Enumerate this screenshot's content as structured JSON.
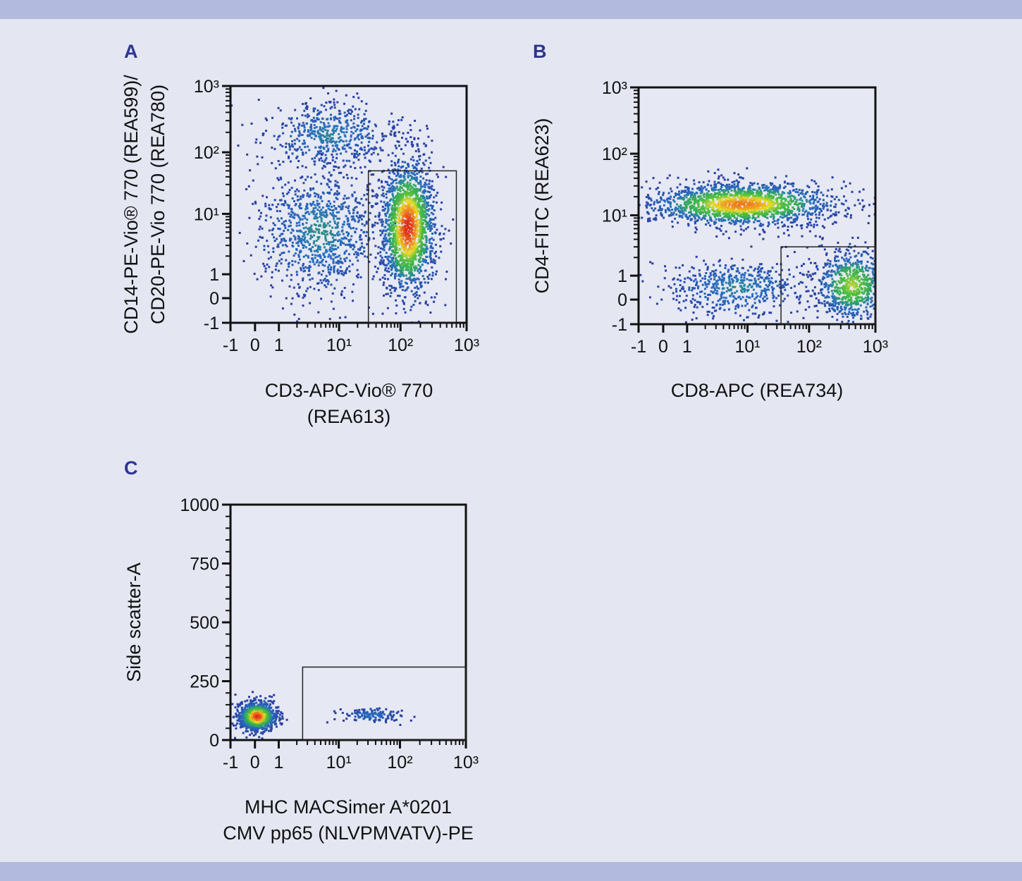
{
  "colors": {
    "background": "#e4e7f2",
    "frame_bars": "#b2bade",
    "panel_letter": "#2d3590",
    "density_low": "#2a3aa0",
    "density_mid": "#3cb44a",
    "density_high": "#e02a1a"
  },
  "chart_data": [
    {
      "type": "scatter",
      "subtype": "flow-cytometry-density-plot",
      "panel": "A",
      "xlabel": [
        "CD3-APC-Vio® 770",
        "(REA613)"
      ],
      "ylabel": [
        "CD14-PE-Vio® 770 (REA599)/",
        "CD20-PE-Vio 770 (REA780)"
      ],
      "x_scale": "biexponential",
      "y_scale": "biexponential",
      "xlim": [
        -1,
        1000
      ],
      "ylim": [
        -1,
        1000
      ],
      "x_ticks": [
        "-1",
        "0",
        "1",
        "10¹",
        "10²",
        "10³"
      ],
      "y_ticks": [
        "-1",
        "0",
        "1",
        "10¹",
        "10²",
        "10³"
      ],
      "gate": {
        "x": [
          30,
          700
        ],
        "y": [
          -1,
          50
        ]
      },
      "populations": [
        {
          "center": [
            7,
            180
          ],
          "x_range": [
            -1,
            20
          ],
          "y_range": [
            60,
            700
          ],
          "events": 550,
          "peak_density": 0.35
        },
        {
          "center": [
            5,
            5
          ],
          "x_range": [
            -1,
            20
          ],
          "y_range": [
            -1,
            25
          ],
          "events": 1000,
          "peak_density": 0.38
        },
        {
          "center": [
            130,
            6
          ],
          "x_range": [
            45,
            330
          ],
          "y_range": [
            -1,
            30
          ],
          "events": 1700,
          "peak_density": 1.0
        }
      ]
    },
    {
      "type": "scatter",
      "subtype": "flow-cytometry-density-plot",
      "panel": "B",
      "xlabel": [
        "CD8-APC (REA734)"
      ],
      "ylabel": [
        "CD4-FITC (REA623)"
      ],
      "x_scale": "biexponential",
      "y_scale": "biexponential",
      "xlim": [
        -1,
        1000
      ],
      "ylim": [
        -1,
        1000
      ],
      "x_ticks": [
        "-1",
        "0",
        "1",
        "10¹",
        "10²",
        "10³"
      ],
      "y_ticks": [
        "-1",
        "0",
        "1",
        "10¹",
        "10²",
        "10³"
      ],
      "gate": {
        "x": [
          35,
          1000
        ],
        "y": [
          -1,
          3
        ]
      },
      "populations": [
        {
          "center": [
            8,
            15
          ],
          "x_range": [
            -1,
            200
          ],
          "y_range": [
            6,
            32
          ],
          "events": 1700,
          "peak_density": 0.9
        },
        {
          "center": [
            7,
            0.5
          ],
          "x_range": [
            -1,
            40
          ],
          "y_range": [
            -1,
            1.6
          ],
          "events": 550,
          "peak_density": 0.36
        },
        {
          "center": [
            450,
            0.6
          ],
          "x_range": [
            60,
            800
          ],
          "y_range": [
            -1,
            2.5
          ],
          "events": 750,
          "peak_density": 0.7
        }
      ]
    },
    {
      "type": "scatter",
      "subtype": "flow-cytometry-density-plot",
      "panel": "C",
      "xlabel": [
        "MHC MACSimer A*0201",
        "CMV pp65 (NLVPMVATV)-PE"
      ],
      "ylabel": [
        "Side scatter-A"
      ],
      "x_scale": "biexponential",
      "y_scale": "linear",
      "xlim": [
        -1,
        1000
      ],
      "ylim": [
        0,
        1000
      ],
      "x_ticks": [
        "-1",
        "0",
        "1",
        "10¹",
        "10²",
        "10³"
      ],
      "y_ticks": [
        "0",
        "250",
        "500",
        "750",
        "1000"
      ],
      "gate": {
        "x": [
          2.5,
          1000
        ],
        "y": [
          0,
          310
        ]
      },
      "populations": [
        {
          "center": [
            0.1,
            100
          ],
          "x_range": [
            -0.8,
            0.8
          ],
          "y_range": [
            50,
            175
          ],
          "events": 1000,
          "peak_density": 1.0
        },
        {
          "center": [
            35,
            105
          ],
          "x_range": [
            10,
            90
          ],
          "y_range": [
            78,
            140
          ],
          "events": 130,
          "peak_density": 0.3
        }
      ]
    }
  ]
}
